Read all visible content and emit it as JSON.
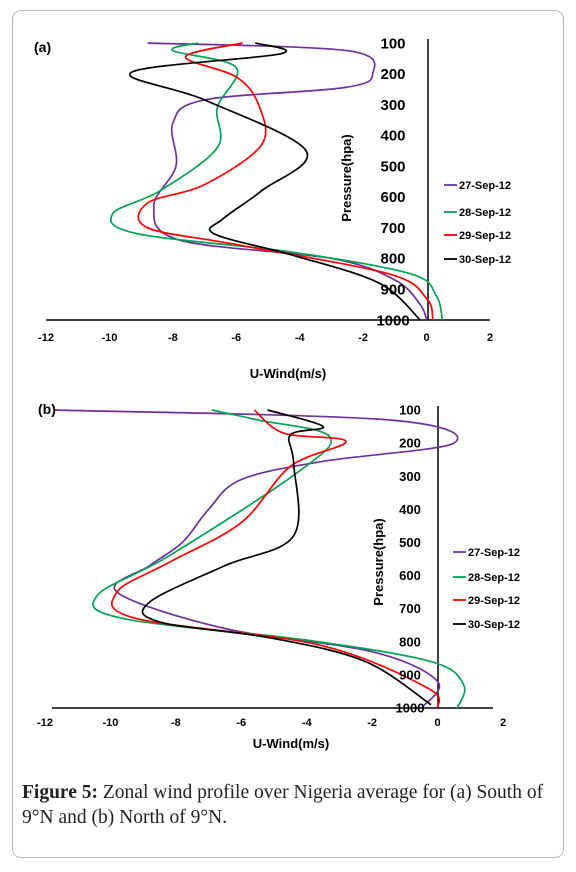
{
  "caption": {
    "label": "Figure 5:",
    "text": "Zonal wind profile over Nigeria average for (a) South of 9°N and (b) North of 9°N."
  },
  "chart_data": [
    {
      "panel": "(a)",
      "type": "line",
      "xlabel": "U-Wind(m/s)",
      "ylabel": "Pressure(hpa)",
      "xlim": [
        -12,
        2
      ],
      "ylim": [
        100,
        1000
      ],
      "y_inverted": true,
      "x_ticks": [
        "-12",
        "-10",
        "-8",
        "-6",
        "-4",
        "-2",
        "0",
        "2"
      ],
      "y_ticks": [
        "100",
        "200",
        "300",
        "400",
        "500",
        "600",
        "700",
        "800",
        "900",
        "1000"
      ],
      "legend_position": "right",
      "series": [
        {
          "name": "27-Sep-12",
          "color": "#7030a0",
          "points": [
            [
              -8.8,
              100
            ],
            [
              -2.5,
              125
            ],
            [
              -1.7,
              200
            ],
            [
              -2.6,
              245
            ],
            [
              -7.0,
              285
            ],
            [
              -8.0,
              360
            ],
            [
              -7.9,
              500
            ],
            [
              -8.6,
              630
            ],
            [
              -7.8,
              740
            ],
            [
              -3.0,
              800
            ],
            [
              -1.0,
              870
            ],
            [
              -0.2,
              950
            ],
            [
              0.0,
              1000
            ]
          ]
        },
        {
          "name": "28-Sep-12",
          "color": "#00a550",
          "points": [
            [
              -7.2,
              100
            ],
            [
              -8.0,
              125
            ],
            [
              -6.0,
              180
            ],
            [
              -6.6,
              310
            ],
            [
              -6.6,
              440
            ],
            [
              -8.4,
              580
            ],
            [
              -9.9,
              655
            ],
            [
              -9.1,
              720
            ],
            [
              -4.2,
              780
            ],
            [
              -0.5,
              850
            ],
            [
              0.3,
              920
            ],
            [
              0.5,
              1000
            ]
          ]
        },
        {
          "name": "29-Sep-12",
          "color": "#ff0000",
          "points": [
            [
              -5.8,
              100
            ],
            [
              -7.6,
              145
            ],
            [
              -6.0,
              210
            ],
            [
              -5.3,
              300
            ],
            [
              -5.2,
              430
            ],
            [
              -7.0,
              560
            ],
            [
              -8.8,
              620
            ],
            [
              -8.8,
              700
            ],
            [
              -6.0,
              755
            ],
            [
              -1.2,
              850
            ],
            [
              0.0,
              930
            ],
            [
              0.2,
              1000
            ]
          ]
        },
        {
          "name": "30-Sep-12",
          "color": "#000000",
          "points": [
            [
              -5.4,
              100
            ],
            [
              -4.6,
              135
            ],
            [
              -9.3,
              195
            ],
            [
              -7.0,
              285
            ],
            [
              -3.8,
              450
            ],
            [
              -5.2,
              580
            ],
            [
              -6.4,
              670
            ],
            [
              -6.7,
              720
            ],
            [
              -4.2,
              790
            ],
            [
              -1.5,
              880
            ],
            [
              -0.2,
              1000
            ]
          ]
        }
      ]
    },
    {
      "panel": "(b)",
      "type": "line",
      "xlabel": "U-Wind(m/s)",
      "ylabel": "Pressure(hpa)",
      "xlim": [
        -12,
        2
      ],
      "ylim": [
        100,
        1000
      ],
      "y_inverted": true,
      "x_ticks": [
        "-12",
        "-10",
        "-8",
        "-6",
        "-4",
        "-2",
        "0",
        "2"
      ],
      "y_ticks": [
        "100",
        "200",
        "300",
        "400",
        "500",
        "600",
        "700",
        "800",
        "900",
        "1000"
      ],
      "legend_position": "right",
      "series": [
        {
          "name": "27-Sep-12",
          "color": "#7030a0",
          "points": [
            [
              -11.7,
              100
            ],
            [
              -1.5,
              130
            ],
            [
              0.5,
              200
            ],
            [
              -3.5,
              255
            ],
            [
              -6.0,
              310
            ],
            [
              -7.0,
              400
            ],
            [
              -7.8,
              500
            ],
            [
              -8.8,
              570
            ],
            [
              -9.8,
              650
            ],
            [
              -6.5,
              760
            ],
            [
              -2.0,
              830
            ],
            [
              0.0,
              920
            ],
            [
              -0.5,
              1000
            ]
          ]
        },
        {
          "name": "28-Sep-12",
          "color": "#00a550",
          "points": [
            [
              -6.9,
              100
            ],
            [
              -5.5,
              130
            ],
            [
              -3.3,
              180
            ],
            [
              -4.3,
              290
            ],
            [
              -8.2,
              540
            ],
            [
              -10.4,
              660
            ],
            [
              -9.6,
              730
            ],
            [
              -4.0,
              795
            ],
            [
              -0.2,
              860
            ],
            [
              0.8,
              930
            ],
            [
              0.6,
              1000
            ]
          ]
        },
        {
          "name": "29-Sep-12",
          "color": "#ff0000",
          "points": [
            [
              -5.6,
              100
            ],
            [
              -4.7,
              170
            ],
            [
              -2.8,
              195
            ],
            [
              -4.5,
              270
            ],
            [
              -6.0,
              440
            ],
            [
              -8.2,
              560
            ],
            [
              -9.8,
              650
            ],
            [
              -9.2,
              730
            ],
            [
              -3.6,
              810
            ],
            [
              -0.3,
              940
            ],
            [
              0.0,
              1000
            ]
          ]
        },
        {
          "name": "30-Sep-12",
          "color": "#000000",
          "points": [
            [
              -5.2,
              100
            ],
            [
              -3.5,
              150
            ],
            [
              -4.5,
              175
            ],
            [
              -4.4,
              260
            ],
            [
              -4.4,
              480
            ],
            [
              -6.5,
              570
            ],
            [
              -8.8,
              680
            ],
            [
              -8.5,
              740
            ],
            [
              -5.0,
              790
            ],
            [
              -2.2,
              860
            ],
            [
              -0.2,
              990
            ]
          ]
        }
      ]
    }
  ]
}
